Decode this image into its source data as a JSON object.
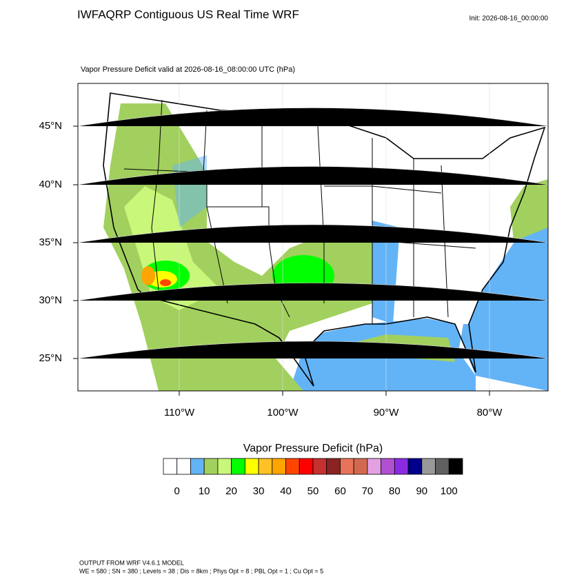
{
  "header": {
    "title": "IWFAQRP Contiguous US Real Time WRF",
    "init": "Init: 2026-08-16_00:00:00"
  },
  "map": {
    "subtitle": "Vapor Pressure Deficit valid at 2026-08-16_08:00:00 UTC   (hPa)",
    "lat_labels": [
      "45°N",
      "40°N",
      "35°N",
      "30°N",
      "25°N"
    ],
    "lon_labels": [
      "110°W",
      "100°W",
      "90°W",
      "80°W"
    ]
  },
  "colorbar": {
    "title": "Vapor Pressure Deficit  (hPa)",
    "colors": [
      "#ffffff",
      "#ffffff",
      "#63b3f7",
      "#a2d05e",
      "#c9f77a",
      "#00ff00",
      "#ffff00",
      "#ffc125",
      "#ffa500",
      "#ff4500",
      "#ff0000",
      "#c53030",
      "#8b2323",
      "#e9735a",
      "#d2694f",
      "#e3a0e3",
      "#b04fd0",
      "#8a2be2",
      "#00008b",
      "#999999",
      "#606060",
      "#000000"
    ],
    "labels": [
      "0",
      "10",
      "20",
      "30",
      "40",
      "50",
      "60",
      "70",
      "80",
      "90",
      "100"
    ]
  },
  "footer": {
    "line1": "OUTPUT FROM WRF V4.6.1 MODEL",
    "line2": "WE = 580 ; SN = 380 ; Levels = 38 ; Dis = 8km ; Phys Opt = 8 ; PBL Opt = 1 ; Cu Opt = 5"
  }
}
